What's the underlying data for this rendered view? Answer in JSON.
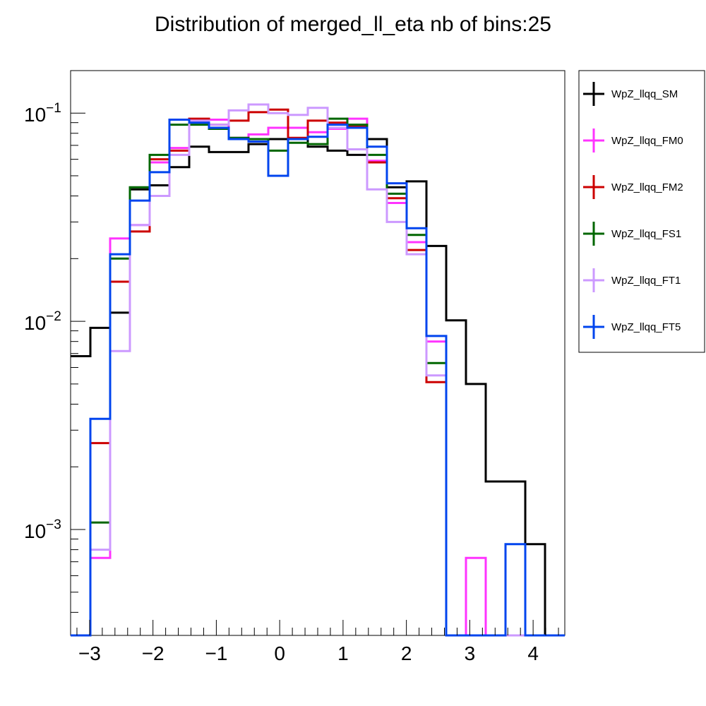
{
  "chart_data": {
    "type": "histogram-step",
    "title": "Distribution of merged_ll_eta nb of bins:25",
    "xlabel": "",
    "ylabel": "",
    "x_scale": "linear",
    "y_scale": "log",
    "xlim": [
      -3.3,
      4.5
    ],
    "ylim": [
      0.00031,
      0.16
    ],
    "bin_edges": [
      -3.3,
      -2.988,
      -2.676,
      -2.364,
      -2.052,
      -1.74,
      -1.428,
      -1.116,
      -0.804,
      -0.492,
      -0.18,
      0.132,
      0.444,
      0.756,
      1.068,
      1.38,
      1.692,
      2.004,
      2.316,
      2.628,
      2.94,
      3.252,
      3.564,
      3.876,
      4.188,
      4.5
    ],
    "x_ticks": [
      {
        "value": -3,
        "label": "−3"
      },
      {
        "value": -2,
        "label": "−2"
      },
      {
        "value": -1,
        "label": "−1"
      },
      {
        "value": 0,
        "label": "0"
      },
      {
        "value": 1,
        "label": "1"
      },
      {
        "value": 2,
        "label": "2"
      },
      {
        "value": 3,
        "label": "3"
      },
      {
        "value": 4,
        "label": "4"
      }
    ],
    "y_ticks": [
      {
        "value": 0.1,
        "base": "10",
        "exp": "−1"
      },
      {
        "value": 0.01,
        "base": "10",
        "exp": "−2"
      },
      {
        "value": 0.001,
        "base": "10",
        "exp": "−3"
      }
    ],
    "legend_position": "right-outside",
    "series": [
      {
        "name": "WpZ_llqq_SM",
        "color": "#000000",
        "values": [
          0.0068,
          0.0093,
          0.011,
          0.043,
          0.045,
          0.055,
          0.069,
          0.065,
          0.065,
          0.071,
          0.075,
          0.075,
          0.069,
          0.066,
          0.063,
          0.075,
          0.044,
          0.047,
          0.023,
          0.0101,
          0.005,
          0.0017,
          0.0017,
          0.00085,
          0
        ]
      },
      {
        "name": "WpZ_llqq_FM0",
        "color": "#ff33ff",
        "values": [
          0,
          0.00073,
          0.025,
          0.029,
          0.058,
          0.068,
          0.092,
          0.093,
          0.076,
          0.079,
          0.085,
          0.085,
          0.081,
          0.084,
          0.094,
          0.059,
          0.037,
          0.024,
          0.008,
          0,
          0.00073,
          0,
          0,
          0,
          0
        ]
      },
      {
        "name": "WpZ_llqq_FM2",
        "color": "#cc0000",
        "values": [
          0,
          0.0026,
          0.0155,
          0.027,
          0.06,
          0.066,
          0.094,
          0.088,
          0.092,
          0.101,
          0.104,
          0.076,
          0.092,
          0.09,
          0.087,
          0.058,
          0.039,
          0.022,
          0.0051,
          0,
          0,
          0,
          0,
          0,
          0
        ]
      },
      {
        "name": "WpZ_llqq_FS1",
        "color": "#006600",
        "values": [
          0,
          0.00108,
          0.02,
          0.044,
          0.063,
          0.088,
          0.088,
          0.084,
          0.076,
          0.075,
          0.066,
          0.072,
          0.071,
          0.094,
          0.088,
          0.063,
          0.041,
          0.026,
          0.0063,
          0,
          0,
          0,
          0,
          0,
          0
        ]
      },
      {
        "name": "WpZ_llqq_FT1",
        "color": "#cc99ff",
        "values": [
          0,
          0.0008,
          0.0072,
          0.029,
          0.04,
          0.063,
          0.092,
          0.088,
          0.103,
          0.11,
          0.1,
          0.098,
          0.106,
          0.085,
          0.067,
          0.043,
          0.03,
          0.021,
          0.0055,
          0,
          0,
          0,
          0,
          0,
          0
        ]
      },
      {
        "name": "WpZ_llqq_FT5",
        "color": "#0044ee",
        "values": [
          0,
          0.0034,
          0.021,
          0.038,
          0.052,
          0.093,
          0.09,
          0.085,
          0.075,
          0.073,
          0.05,
          0.075,
          0.077,
          0.088,
          0.085,
          0.069,
          0.046,
          0.028,
          0.0085,
          0,
          0,
          0,
          0.00085,
          0,
          0
        ]
      }
    ]
  }
}
